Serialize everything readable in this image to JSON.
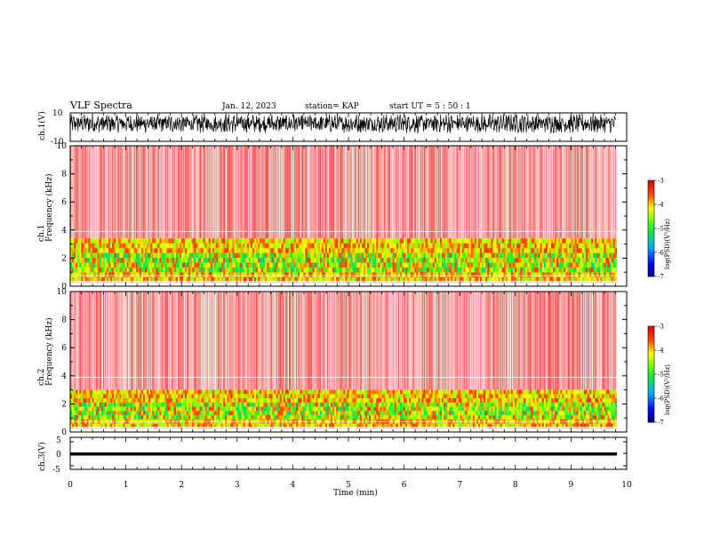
{
  "header": {
    "title": "VLF Spectra",
    "date": "Jan. 12, 2023",
    "station": "station= KAP",
    "start": "start  UT  =   5  : 50 : 1"
  },
  "chart_data": [
    {
      "type": "line",
      "panel": "ch1-waveform",
      "ylabel": "ch.1(V)",
      "ylim": [
        -10,
        10
      ],
      "yticks": [
        "10",
        "-10"
      ],
      "x_range_min": [
        0,
        9.8
      ],
      "description_values": "dense oscillating waveform, amplitude approx +8 to -4 V"
    },
    {
      "type": "heatmap",
      "panel": "ch1-spectrogram",
      "ylabel": "ch.1\nFrequency  (kHz)",
      "ylim": [
        0,
        10
      ],
      "yticks": [
        "0",
        "2",
        "4",
        "6",
        "8",
        "10"
      ],
      "colorbar": {
        "label": "log(PSD)(V²/Hz)",
        "range": [
          -7,
          -3
        ],
        "ticks": [
          "-3",
          "-4",
          "-5",
          "-6",
          "-7"
        ]
      },
      "bands_khz": {
        "strong_low": [
          0.3,
          3.4
        ],
        "weak_high": [
          3.4,
          10
        ]
      }
    },
    {
      "type": "heatmap",
      "panel": "ch2-spectrogram",
      "ylabel": "ch.2\nFrequency  (kHz)",
      "ylim": [
        0,
        10
      ],
      "yticks": [
        "0",
        "2",
        "4",
        "6",
        "8",
        "10"
      ],
      "colorbar": {
        "label": "log(PSD)(V²/Hz)",
        "range": [
          -7,
          -3
        ],
        "ticks": [
          "-3",
          "-4",
          "-5",
          "-6",
          "-7"
        ]
      },
      "bands_khz": {
        "strong_low": [
          0.3,
          3.0
        ],
        "weak_high": [
          3.0,
          10
        ]
      }
    },
    {
      "type": "line",
      "panel": "ch3-waveform",
      "ylabel": "ch.3(V)",
      "ylim": [
        -5,
        5
      ],
      "yticks": [
        "5",
        "0",
        "-5"
      ],
      "xlabel": "Time  (min)",
      "xlim": [
        0,
        10
      ],
      "xticks": [
        "0",
        "1",
        "2",
        "3",
        "4",
        "5",
        "6",
        "7",
        "8",
        "9",
        "10"
      ],
      "description_values": "flat thick band near -0.5 V"
    }
  ]
}
